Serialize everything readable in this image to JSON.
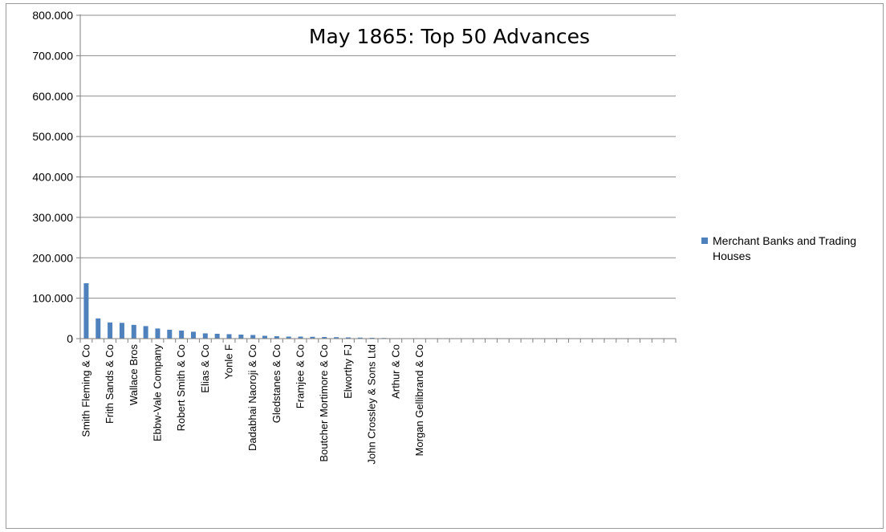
{
  "chart_data": {
    "type": "bar",
    "title": "May 1865: Top 50 Advances",
    "xlabel": "",
    "ylabel": "",
    "ylim": [
      0,
      800000
    ],
    "y_ticks": [
      "0",
      "100.000",
      "200.000",
      "300.000",
      "400.000",
      "500.000",
      "600.000",
      "700.000",
      "800.000"
    ],
    "y_tick_values": [
      0,
      100000,
      200000,
      300000,
      400000,
      500000,
      600000,
      700000,
      800000
    ],
    "grid": true,
    "legend": "right",
    "bar_color": "#4f81bd",
    "categories": [
      "Smith Fleming & Co",
      "",
      "Frith Sands & Co",
      "",
      "Wallace Bros",
      "",
      "Ebbw-Vale Company",
      "",
      "Robert Smith & Co",
      "",
      "Elias & Co",
      "",
      "Yonle F",
      "",
      "Dadabhai Naoroji & Co",
      "",
      "Gledstanes & Co",
      "",
      "Framjee & Co",
      "",
      "Boutcher Mortimore & Co",
      "",
      "Elworthy FJ",
      "",
      "John Crossley & Sons Ltd",
      "",
      "Arthur & Co",
      "",
      "Morgan Gellibrand & Co",
      "",
      "",
      "",
      "",
      "",
      "",
      "",
      "",
      "",
      "",
      "",
      "",
      "",
      "",
      "",
      "",
      "",
      "",
      "",
      "",
      ""
    ],
    "series": [
      {
        "name": "Merchant Banks and Trading Houses",
        "values": [
          137000,
          50000,
          40000,
          39000,
          34000,
          31000,
          25000,
          22000,
          20000,
          17000,
          13000,
          12000,
          11000,
          10000,
          9000,
          7000,
          6000,
          5000,
          5000,
          4500,
          4000,
          3500,
          3000,
          2500,
          2000,
          1500,
          1000,
          800,
          600,
          500,
          400,
          350,
          300,
          250,
          200,
          180,
          160,
          140,
          120,
          100,
          90,
          80,
          70,
          60,
          50,
          40,
          30,
          20,
          10,
          5
        ]
      }
    ]
  }
}
